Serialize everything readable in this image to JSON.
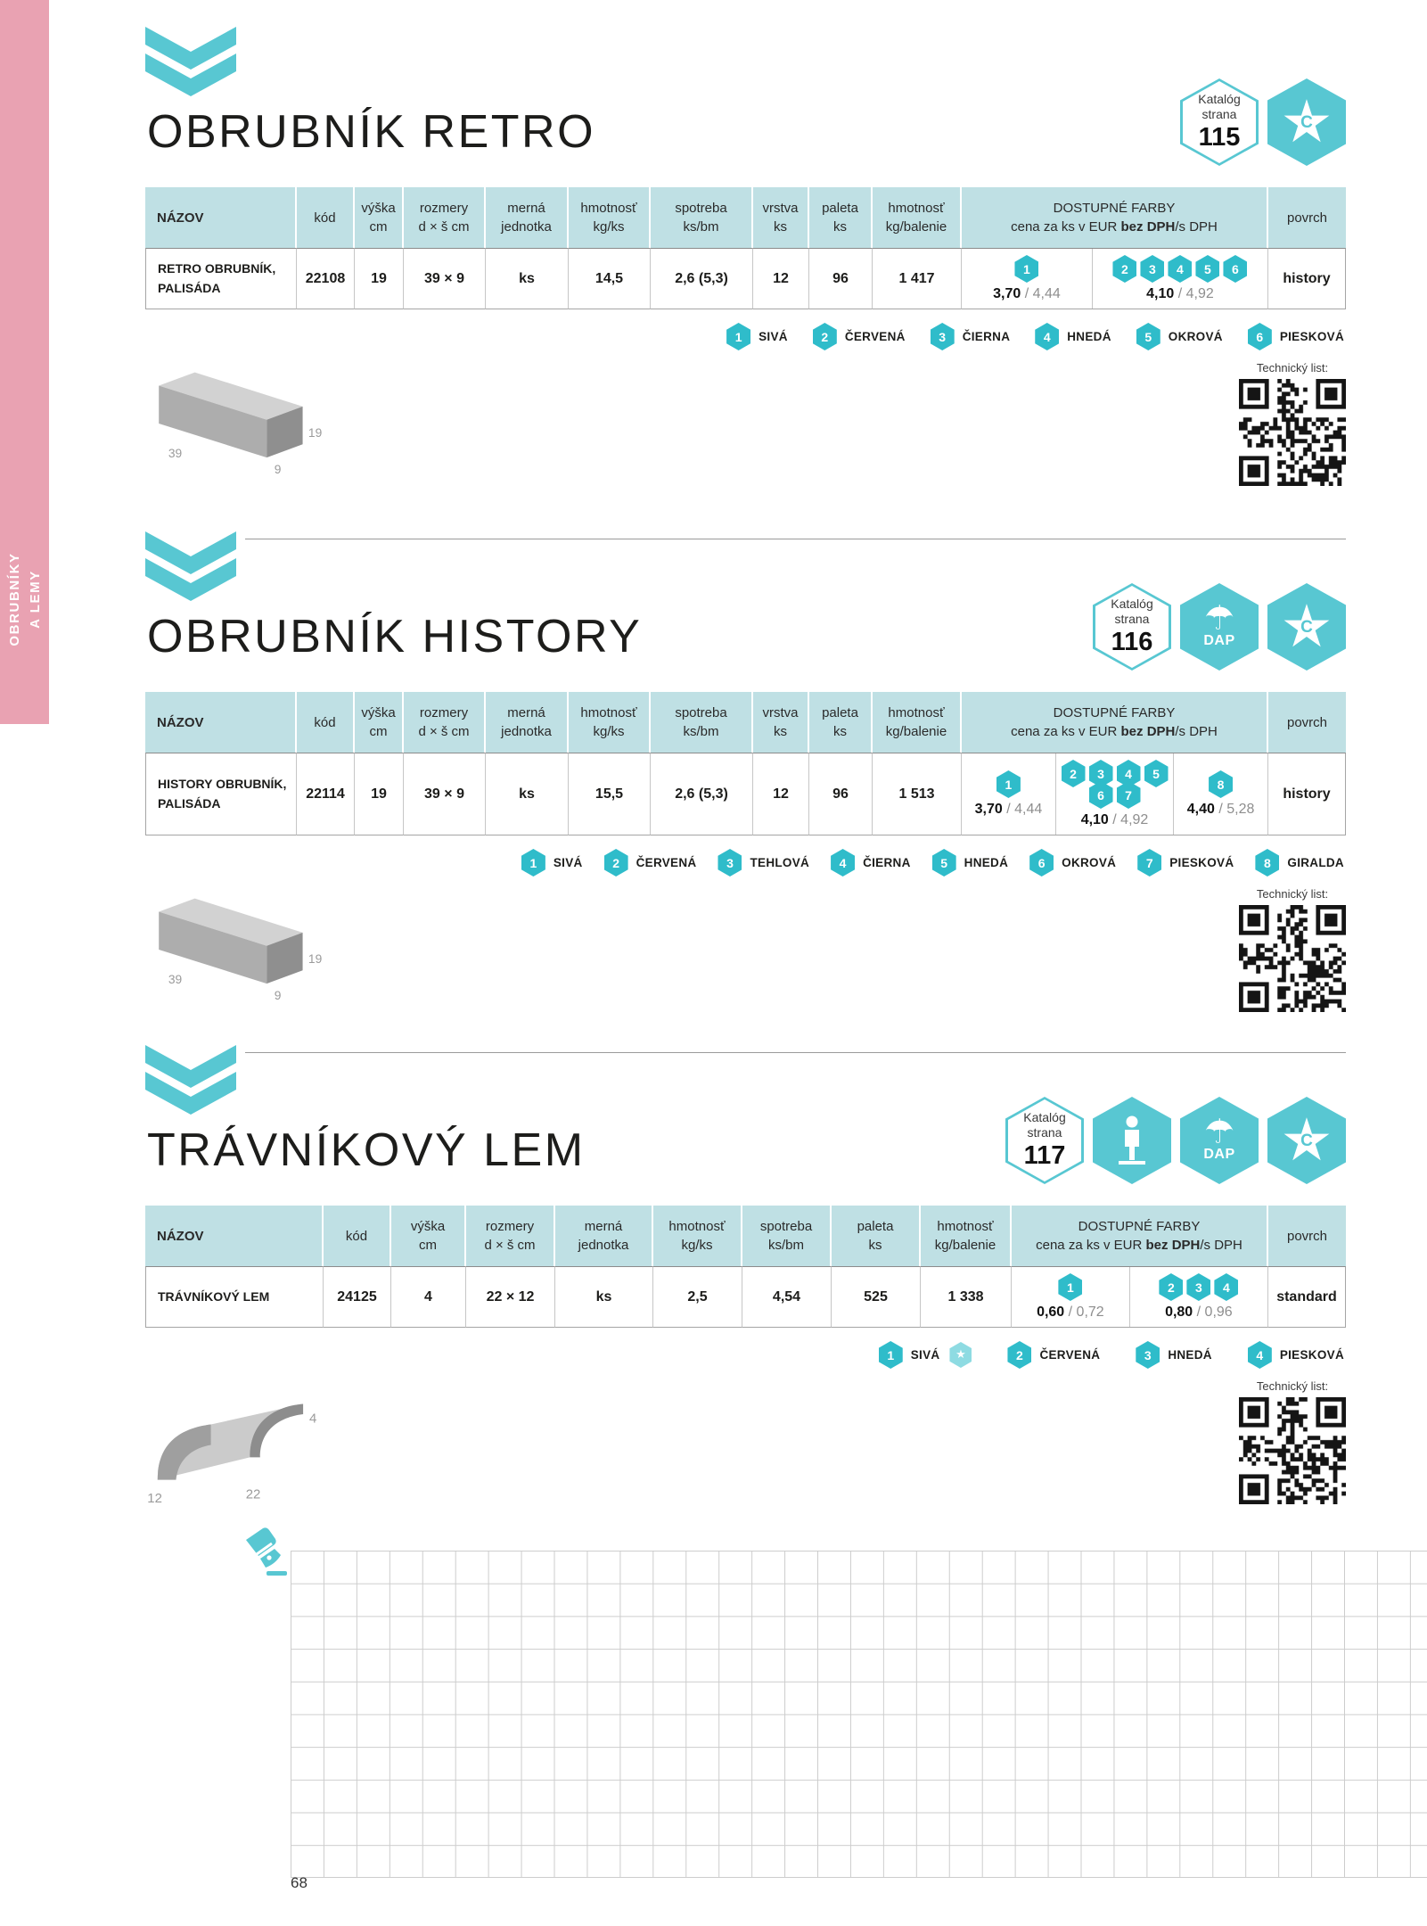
{
  "page": {
    "number": "68"
  },
  "sidebar": {
    "line1": "OBRUBNÍKY",
    "line2": "A LEMY"
  },
  "colors": {
    "accent_teal": "#2fbcca",
    "badge_teal": "#58c7d2",
    "star_light_teal": "#8edbe2",
    "table_header_bg": "#bfe0e4",
    "sidebar_pink": "#e9a2b2"
  },
  "shared": {
    "katalog_line1": "Katalóg",
    "katalog_line2": "strana",
    "dap_label": "DAP",
    "star_letter": "C",
    "tech_list_label": "Technický list:",
    "price_sep": "/",
    "farby_header": {
      "line1": "DOSTUPNÉ FARBY",
      "line2_prefix": "cena za ks v EUR ",
      "line2_bold": "bez DPH",
      "line2_suffix": "/s DPH"
    }
  },
  "sections": [
    {
      "title": "OBRUBNÍK RETRO",
      "catalog_page": "115",
      "badges": [
        "catalog",
        "star"
      ],
      "image": "brick",
      "dims": {
        "height": "19",
        "length": "39",
        "width": "9"
      },
      "table": {
        "headers": [
          {
            "lines": [
              "NÁZOV"
            ]
          },
          {
            "lines": [
              "kód"
            ]
          },
          {
            "lines": [
              "výška",
              "cm"
            ]
          },
          {
            "lines": [
              "rozmery",
              "d × š cm"
            ]
          },
          {
            "lines": [
              "merná",
              "jednotka"
            ]
          },
          {
            "lines": [
              "hmotnosť",
              "kg/ks"
            ]
          },
          {
            "lines": [
              "spotreba",
              "ks/bm"
            ]
          },
          {
            "lines": [
              "vrstva",
              "ks"
            ]
          },
          {
            "lines": [
              "paleta",
              "ks"
            ]
          },
          {
            "lines": [
              "hmotnosť",
              "kg/balenie"
            ]
          },
          {
            "farby": true
          },
          {
            "lines": [
              "povrch"
            ]
          }
        ],
        "row": {
          "name_lines": [
            "RETRO OBRUBNÍK,",
            "PALISÁDA"
          ],
          "values": [
            "22108",
            "19",
            "39 × 9",
            "ks",
            "14,5",
            "2,6 (5,3)",
            "12",
            "96",
            "1 417"
          ],
          "prices": [
            {
              "hex_rows": [
                [
                  "1"
                ]
              ],
              "bez": "3,70",
              "s": "4,44"
            },
            {
              "hex_rows": [
                [
                  "2",
                  "3",
                  "4",
                  "5",
                  "6"
                ]
              ],
              "bez": "4,10",
              "s": "4,92"
            }
          ],
          "povrch": "history"
        }
      },
      "legend": [
        {
          "n": "1",
          "label": "SIVÁ"
        },
        {
          "n": "2",
          "label": "ČERVENÁ"
        },
        {
          "n": "3",
          "label": "ČIERNA"
        },
        {
          "n": "4",
          "label": "HNEDÁ"
        },
        {
          "n": "5",
          "label": "OKROVÁ"
        },
        {
          "n": "6",
          "label": "PIESKOVÁ"
        }
      ]
    },
    {
      "title": "OBRUBNÍK HISTORY",
      "catalog_page": "116",
      "badges": [
        "catalog",
        "dap",
        "star"
      ],
      "image": "brick",
      "dims": {
        "height": "19",
        "length": "39",
        "width": "9"
      },
      "table": {
        "headers": [
          {
            "lines": [
              "NÁZOV"
            ]
          },
          {
            "lines": [
              "kód"
            ]
          },
          {
            "lines": [
              "výška",
              "cm"
            ]
          },
          {
            "lines": [
              "rozmery",
              "d × š cm"
            ]
          },
          {
            "lines": [
              "merná",
              "jednotka"
            ]
          },
          {
            "lines": [
              "hmotnosť",
              "kg/ks"
            ]
          },
          {
            "lines": [
              "spotreba",
              "ks/bm"
            ]
          },
          {
            "lines": [
              "vrstva",
              "ks"
            ]
          },
          {
            "lines": [
              "paleta",
              "ks"
            ]
          },
          {
            "lines": [
              "hmotnosť",
              "kg/balenie"
            ]
          },
          {
            "farby": true
          },
          {
            "lines": [
              "povrch"
            ]
          }
        ],
        "row": {
          "name_lines": [
            "HISTORY OBRUBNÍK,",
            "PALISÁDA"
          ],
          "values": [
            "22114",
            "19",
            "39 × 9",
            "ks",
            "15,5",
            "2,6 (5,3)",
            "12",
            "96",
            "1 513"
          ],
          "prices": [
            {
              "hex_rows": [
                [
                  "1"
                ]
              ],
              "bez": "3,70",
              "s": "4,44"
            },
            {
              "hex_rows": [
                [
                  "2",
                  "3",
                  "4",
                  "5"
                ],
                [
                  "6",
                  "7"
                ]
              ],
              "bez": "4,10",
              "s": "4,92"
            },
            {
              "hex_rows": [
                [
                  "8"
                ]
              ],
              "bez": "4,40",
              "s": "5,28"
            }
          ],
          "povrch": "history"
        }
      },
      "legend": [
        {
          "n": "1",
          "label": "SIVÁ"
        },
        {
          "n": "2",
          "label": "ČERVENÁ"
        },
        {
          "n": "3",
          "label": "TEHLOVÁ"
        },
        {
          "n": "4",
          "label": "ČIERNA"
        },
        {
          "n": "5",
          "label": "HNEDÁ"
        },
        {
          "n": "6",
          "label": "OKROVÁ"
        },
        {
          "n": "7",
          "label": "PIESKOVÁ"
        },
        {
          "n": "8",
          "label": "GIRALDA"
        }
      ]
    },
    {
      "title": "TRÁVNÍKOVÝ LEM",
      "catalog_page": "117",
      "badges": [
        "catalog",
        "person",
        "dap",
        "star"
      ],
      "image": "lawn-edge",
      "dims": {
        "height": "4",
        "length": "22",
        "width": "12"
      },
      "table": {
        "headers": [
          {
            "lines": [
              "NÁZOV"
            ]
          },
          {
            "lines": [
              "kód"
            ]
          },
          {
            "lines": [
              "výška",
              "cm"
            ]
          },
          {
            "lines": [
              "rozmery",
              "d × š cm"
            ]
          },
          {
            "lines": [
              "merná",
              "jednotka"
            ]
          },
          {
            "lines": [
              "hmotnosť",
              "kg/ks"
            ]
          },
          {
            "lines": [
              "spotreba",
              "ks/bm"
            ]
          },
          {
            "lines": [
              "paleta",
              "ks"
            ]
          },
          {
            "lines": [
              "hmotnosť",
              "kg/balenie"
            ]
          },
          {
            "farby": true
          },
          {
            "lines": [
              "povrch"
            ]
          }
        ],
        "row": {
          "name_lines": [
            "TRÁVNÍKOVÝ LEM"
          ],
          "values": [
            "24125",
            "4",
            "22 × 12",
            "ks",
            "2,5",
            "4,54",
            "525",
            "1 338"
          ],
          "prices": [
            {
              "hex_rows": [
                [
                  "1"
                ]
              ],
              "bez": "0,60",
              "s": "0,72"
            },
            {
              "hex_rows": [
                [
                  "2",
                  "3",
                  "4"
                ]
              ],
              "bez": "0,80",
              "s": "0,96"
            }
          ],
          "povrch": "standard"
        }
      },
      "legend": [
        {
          "n": "1",
          "label": "SIVÁ",
          "star": true
        },
        {
          "n": "2",
          "label": "ČERVENÁ"
        },
        {
          "n": "3",
          "label": "HNEDÁ"
        },
        {
          "n": "4",
          "label": "PIESKOVÁ"
        }
      ]
    }
  ]
}
